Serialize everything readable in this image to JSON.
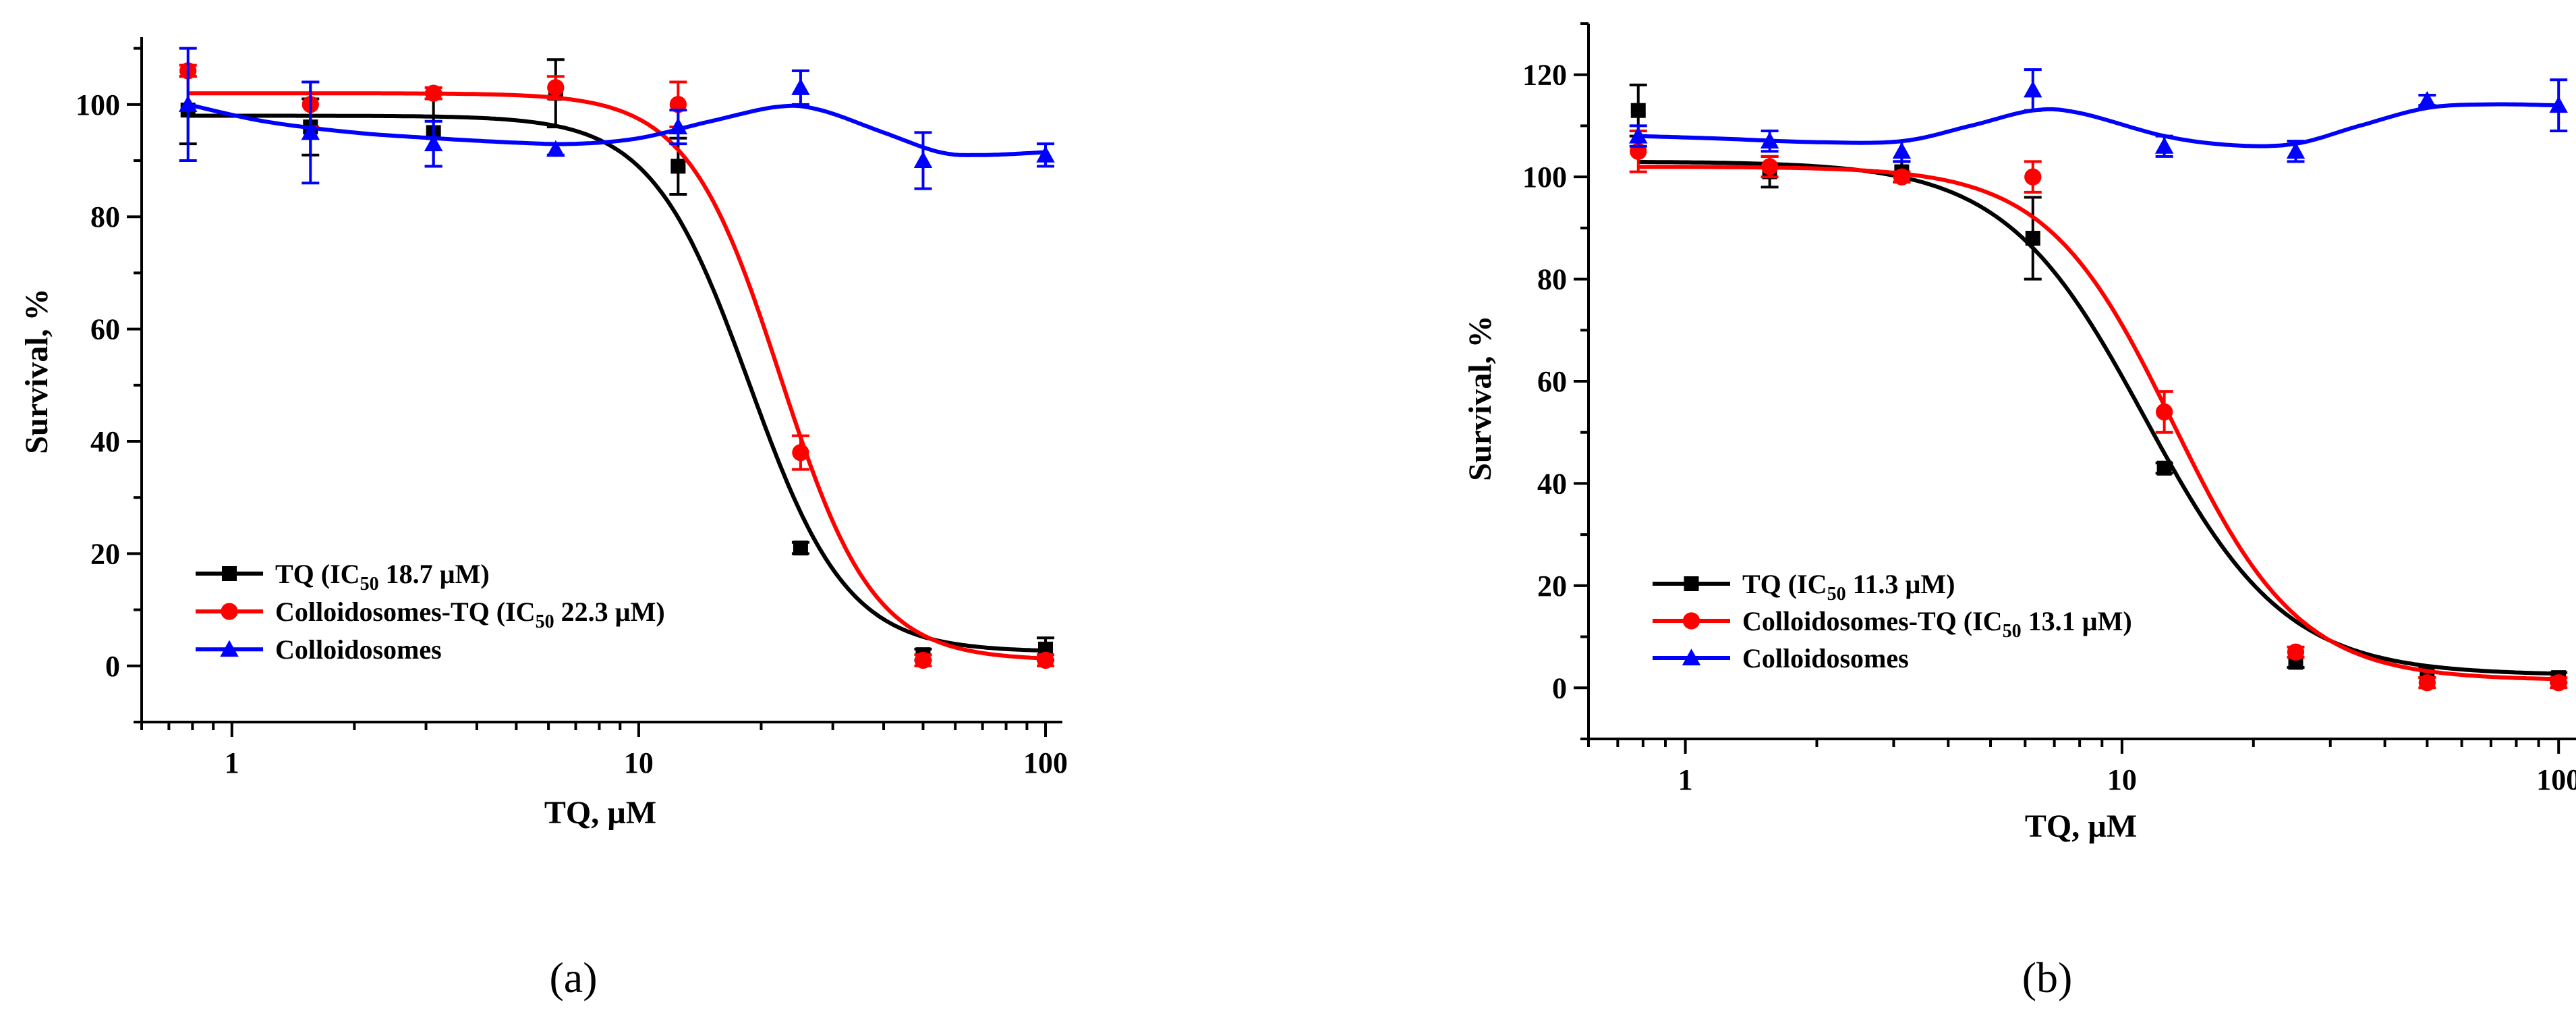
{
  "chart_data": [
    {
      "type": "scatter",
      "panel_label": "(a)",
      "xlabel": "TQ, µM",
      "ylabel": "Survival, %",
      "xscale": "log",
      "xlim": [
        0.6,
        110
      ],
      "ylim": [
        -10,
        112
      ],
      "x_ticks": [
        1,
        10,
        100
      ],
      "y_ticks": [
        0,
        20,
        40,
        60,
        80,
        100
      ],
      "legend_position": "bottom-left",
      "series": [
        {
          "name": "TQ",
          "legend_prefix": "TQ (IC",
          "legend_sub": "50",
          "legend_suffix": " 18.7 µM)",
          "color": "#000000",
          "marker": "square",
          "x": [
            0.78,
            1.56,
            3.13,
            6.25,
            12.5,
            25,
            50,
            100
          ],
          "y": [
            99,
            96,
            95,
            102,
            89,
            21,
            2,
            3
          ],
          "err": [
            6,
            5,
            6,
            6,
            5,
            1,
            1,
            2
          ],
          "fit": {
            "top": 98,
            "bottom": 2.5,
            "ic50": 18.7,
            "hill": 3.6
          }
        },
        {
          "name": "Colloidosomes-TQ",
          "legend_prefix": "Colloidosomes-TQ (IC",
          "legend_sub": "50",
          "legend_suffix": " 22.3 µM)",
          "color": "#ff0000",
          "marker": "circle",
          "x": [
            0.78,
            1.56,
            3.13,
            6.25,
            12.5,
            25,
            50,
            100
          ],
          "y": [
            106,
            100,
            102,
            103,
            100,
            38,
            1,
            1
          ],
          "err": [
            1,
            4,
            1,
            2,
            4,
            3,
            1,
            1
          ],
          "fit": {
            "top": 102,
            "bottom": 1,
            "ic50": 22.3,
            "hill": 3.8
          }
        },
        {
          "name": "Colloidosomes",
          "legend_prefix": "Colloidosomes",
          "legend_sub": "",
          "legend_suffix": "",
          "color": "#0000ff",
          "marker": "triangle",
          "x": [
            0.78,
            1.56,
            3.13,
            6.25,
            12.5,
            25,
            50,
            100
          ],
          "y": [
            100,
            95,
            93,
            92,
            96,
            103,
            90,
            91
          ],
          "err": [
            10,
            9,
            4,
            1,
            3,
            3,
            5,
            2
          ],
          "curve": [
            [
              0.78,
              100
            ],
            [
              1.2,
              97
            ],
            [
              2,
              95
            ],
            [
              3.13,
              94
            ],
            [
              5,
              93.2
            ],
            [
              7,
              93
            ],
            [
              10,
              94
            ],
            [
              15,
              97
            ],
            [
              22,
              99.6
            ],
            [
              28,
              99
            ],
            [
              40,
              95
            ],
            [
              55,
              91.5
            ],
            [
              70,
              91
            ],
            [
              100,
              91.5
            ]
          ]
        }
      ]
    },
    {
      "type": "scatter",
      "panel_label": "(b)",
      "xlabel": "TQ, µM",
      "ylabel": "Survival, %",
      "xscale": "log",
      "xlim": [
        0.6,
        110
      ],
      "ylim": [
        -10,
        130
      ],
      "x_ticks": [
        1,
        10,
        100
      ],
      "y_ticks": [
        0,
        20,
        40,
        60,
        80,
        100,
        120
      ],
      "legend_position": "bottom-left",
      "series": [
        {
          "name": "TQ",
          "legend_prefix": "TQ (IC",
          "legend_sub": "50",
          "legend_suffix": " 11.3 µM)",
          "color": "#000000",
          "marker": "square",
          "x": [
            0.78,
            1.56,
            3.13,
            6.25,
            12.5,
            25,
            50,
            100
          ],
          "y": [
            113,
            101,
            101,
            88,
            43,
            5,
            3,
            2
          ],
          "err": [
            5,
            3,
            2,
            8,
            1,
            1,
            1,
            1
          ],
          "fit": {
            "top": 103,
            "bottom": 2.5,
            "ic50": 11.3,
            "hill": 2.7
          }
        },
        {
          "name": "Colloidosomes-TQ",
          "legend_prefix": "Colloidosomes-TQ (IC",
          "legend_sub": "50",
          "legend_suffix": " 13.1 µM)",
          "color": "#ff0000",
          "marker": "circle",
          "x": [
            0.78,
            1.56,
            3.13,
            6.25,
            12.5,
            25,
            50,
            100
          ],
          "y": [
            105,
            102,
            100,
            100,
            54,
            7,
            1,
            1
          ],
          "err": [
            4,
            2,
            1,
            3,
            4,
            1,
            1,
            1
          ],
          "fit": {
            "top": 102,
            "bottom": 1.5,
            "ic50": 13.1,
            "hill": 3.0
          }
        },
        {
          "name": "Colloidosomes",
          "legend_prefix": "Colloidosomes",
          "legend_sub": "",
          "legend_suffix": "",
          "color": "#0000ff",
          "marker": "triangle",
          "x": [
            0.78,
            1.56,
            3.13,
            6.25,
            12.5,
            25,
            50,
            100
          ],
          "y": [
            108,
            107,
            105,
            117,
            106,
            105,
            115,
            114
          ],
          "err": [
            2,
            2,
            2,
            4,
            2,
            2,
            1,
            5
          ],
          "curve": [
            [
              0.78,
              108
            ],
            [
              1.2,
              107.5
            ],
            [
              2,
              106.8
            ],
            [
              3.13,
              107
            ],
            [
              4.5,
              110
            ],
            [
              6.25,
              113
            ],
            [
              8,
              112.5
            ],
            [
              12.5,
              108
            ],
            [
              18,
              106.2
            ],
            [
              25,
              106.5
            ],
            [
              35,
              110
            ],
            [
              50,
              113.5
            ],
            [
              70,
              114.2
            ],
            [
              100,
              114
            ]
          ]
        }
      ]
    }
  ]
}
